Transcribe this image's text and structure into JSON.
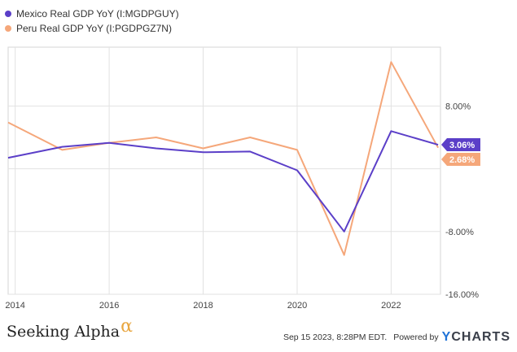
{
  "legend": {
    "items": [
      {
        "label": "Mexico Real GDP YoY (I:MGDPGUY)",
        "color": "#5b3fc8"
      },
      {
        "label": "Peru Real GDP YoY (I:PGDPGZ7N)",
        "color": "#f5a77a"
      }
    ]
  },
  "chart_data": {
    "type": "line",
    "x": [
      2013,
      2014,
      2015,
      2016,
      2017,
      2018,
      2019,
      2020,
      2021,
      2022,
      2023
    ],
    "xlim": [
      2013.85,
      2023.05
    ],
    "x_ticks": [
      2014,
      2016,
      2018,
      2020,
      2022
    ],
    "x_tick_labels": [
      "2014",
      "2016",
      "2018",
      "2020",
      "2022"
    ],
    "ylim": [
      -16,
      15.5
    ],
    "y_ticks": [
      8,
      0,
      -8,
      -16
    ],
    "y_tick_labels": [
      "8.00%",
      "",
      "-8.00%",
      "-16.00%"
    ],
    "grid": true,
    "legend_position": "top-left",
    "series": [
      {
        "name": "Mexico Real GDP YoY (I:MGDPGUY)",
        "color": "#5b3fc8",
        "values": [
          1.4,
          2.8,
          3.3,
          2.6,
          2.1,
          2.2,
          -0.2,
          -8.0,
          4.8,
          3.06
        ],
        "x": [
          2013.85,
          2015,
          2016,
          2017,
          2018,
          2019,
          2020,
          2021,
          2022,
          2023
        ],
        "last_value_label": "3.06%"
      },
      {
        "name": "Peru Real GDP YoY (I:PGDPGZ7N)",
        "color": "#f5a77a",
        "values": [
          5.9,
          2.4,
          3.3,
          4.0,
          2.6,
          4.0,
          2.4,
          -11.0,
          13.6,
          2.68
        ],
        "x": [
          2013.85,
          2015,
          2016,
          2017,
          2018,
          2019,
          2020,
          2021,
          2022,
          2023
        ],
        "last_value_label": "2.68%"
      }
    ]
  },
  "footer": {
    "brand": "Seeking Alpha",
    "brand_symbol": "α",
    "timestamp": "Sep 15 2023, 8:28PM EDT.",
    "powered_by": "Powered by",
    "ycharts_y": "Y",
    "ycharts_rest": "CHARTS"
  }
}
